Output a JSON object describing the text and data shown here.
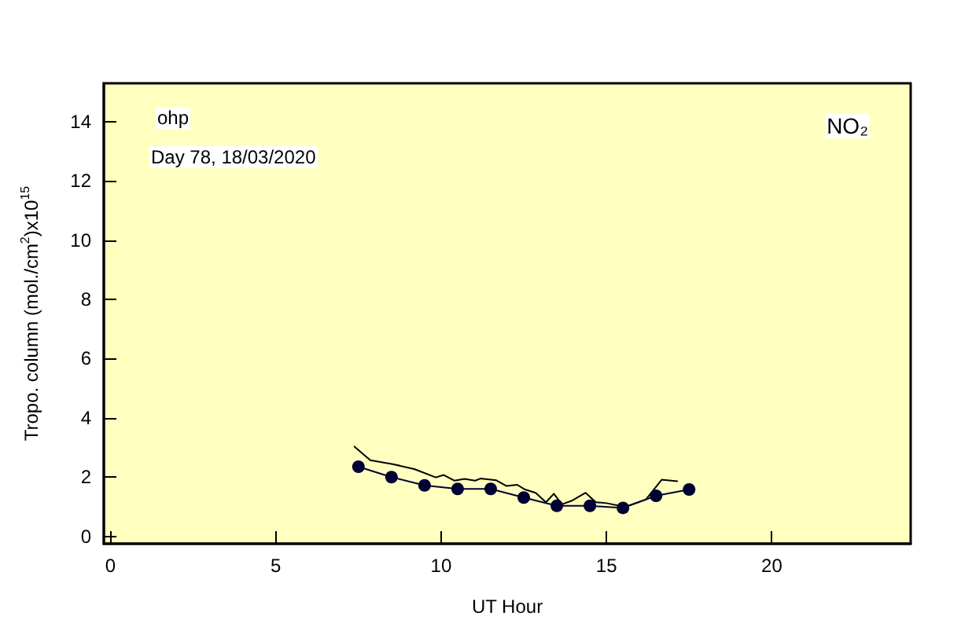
{
  "chart_data": {
    "type": "line",
    "xlabel": "UT Hour",
    "ylabel": "Tropo. column (mol./cm$^{2}$)x10$^{15}$",
    "annotations": [
      "ohp",
      "Day 78, 18/03/2020",
      "NO₂"
    ],
    "xlim": [
      -0.2,
      24.2
    ],
    "xticks": [
      0,
      5,
      10,
      15,
      20
    ],
    "ylim": [
      -0.25,
      15.3
    ],
    "yticks": [
      0,
      2,
      4,
      6,
      8,
      10,
      12,
      14
    ],
    "grid": false,
    "series": [
      {
        "color": "#000000",
        "marker": "none",
        "line_style": "solid",
        "x": [
          7.38,
          7.86,
          8.57,
          9.19,
          9.84,
          10.08,
          10.4,
          10.71,
          11.03,
          11.19,
          11.67,
          11.98,
          12.3,
          12.54,
          12.86,
          13.17,
          13.41,
          13.65,
          13.97,
          14.37,
          14.68,
          15.0,
          15.4,
          15.71,
          16.19,
          16.67,
          17.14
        ],
        "values": [
          3.03,
          2.57,
          2.43,
          2.27,
          1.99,
          2.07,
          1.88,
          1.94,
          1.88,
          1.95,
          1.89,
          1.7,
          1.74,
          1.58,
          1.47,
          1.15,
          1.44,
          1.08,
          1.21,
          1.47,
          1.15,
          1.12,
          1.03,
          1.05,
          1.24,
          1.91,
          1.86
        ]
      },
      {
        "color": "#000033",
        "marker": "circle",
        "line_style": "solid",
        "x": [
          7.5,
          8.5,
          9.5,
          10.5,
          11.5,
          12.5,
          13.5,
          14.5,
          15.5,
          16.5,
          17.5
        ],
        "values": [
          2.35,
          2.0,
          1.72,
          1.6,
          1.6,
          1.31,
          1.03,
          1.03,
          0.96,
          1.37,
          1.58
        ]
      }
    ]
  }
}
